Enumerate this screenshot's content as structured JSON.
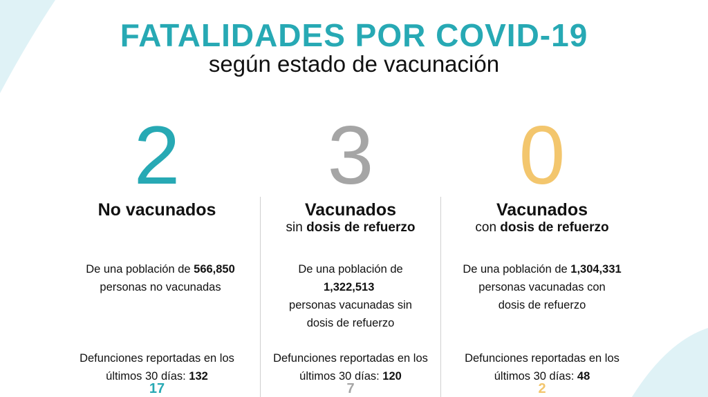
{
  "header": {
    "title": "FATALIDADES POR COVID-19",
    "subtitle": "según estado de vacunación"
  },
  "colors": {
    "teal": "#27a9b4",
    "grey": "#a5a5a5",
    "yellow": "#f3c66d",
    "background_accent": "#dff2f6"
  },
  "columns": [
    {
      "number": "2",
      "heading": "No vacunados",
      "subheading_pre": "",
      "subheading_bold": "",
      "pop_pre": "De una población de ",
      "pop_value": "566,850",
      "pop_post": "personas no vacunadas",
      "deaths_label": "Defunciones reportadas en los últimos 30 días: ",
      "deaths_value": "132",
      "bottom_number": "17"
    },
    {
      "number": "3",
      "heading": "Vacunados",
      "subheading_pre": "sin ",
      "subheading_bold": "dosis de refuerzo",
      "pop_pre": "De una población de",
      "pop_value": "1,322,513",
      "pop_post": "personas vacunadas sin dosis de refuerzo",
      "deaths_label": "Defunciones reportadas en los últimos 30 días: ",
      "deaths_value": "120",
      "bottom_number": "7"
    },
    {
      "number": "0",
      "heading": "Vacunados",
      "subheading_pre": "con ",
      "subheading_bold": "dosis de refuerzo",
      "pop_pre": "De una población de ",
      "pop_value": "1,304,331",
      "pop_post": "personas vacunadas con dosis de refuerzo",
      "deaths_label": "Defunciones reportadas en los últimos 30 días: ",
      "deaths_value": "48",
      "bottom_number": "2"
    }
  ]
}
